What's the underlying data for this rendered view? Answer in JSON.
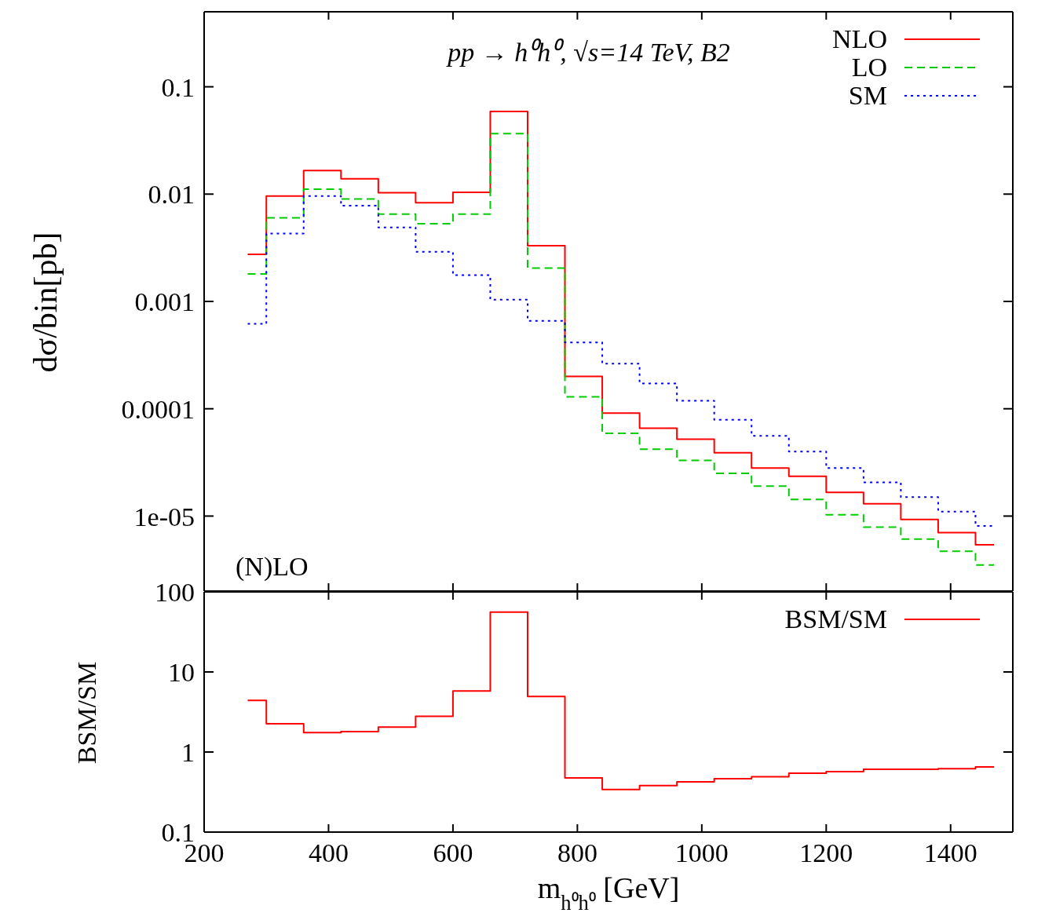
{
  "chart_data": [
    {
      "type": "step",
      "title": "pp → h⁰h⁰, √s=14 TeV, B2",
      "ylabel": "dσ/bin[pb]",
      "annotations": [
        "(N)LO"
      ],
      "x": [
        270,
        330,
        390,
        450,
        510,
        570,
        630,
        690,
        750,
        810,
        870,
        930,
        990,
        1050,
        1110,
        1170,
        1230,
        1290,
        1350,
        1410,
        1470
      ],
      "series": [
        {
          "name": "NLO",
          "color": "#ff0000",
          "line_style": "solid",
          "values": [
            0.00275,
            0.0096,
            0.0166,
            0.0139,
            0.0103,
            0.0083,
            0.0104,
            0.059,
            0.0033,
            0.0002,
            9.1e-05,
            6.6e-05,
            5.2e-05,
            3.9e-05,
            2.8e-05,
            2.35e-05,
            1.66e-05,
            1.3e-05,
            9.3e-06,
            7e-06,
            5.4e-06
          ]
        },
        {
          "name": "LO",
          "color": "#00cc00",
          "line_style": "dashed",
          "values": [
            0.0018,
            0.006,
            0.0111,
            0.009,
            0.0065,
            0.0053,
            0.0065,
            0.0366,
            0.00205,
            0.000129,
            5.9e-05,
            4.2e-05,
            3.3e-05,
            2.5e-05,
            1.9e-05,
            1.43e-05,
            1.03e-05,
            7.9e-06,
            6.1e-06,
            4.7e-06,
            3.5e-06
          ]
        },
        {
          "name": "SM",
          "color": "#0000ff",
          "line_style": "dotted",
          "values": [
            0.00062,
            0.0043,
            0.0096,
            0.0078,
            0.0049,
            0.0029,
            0.00176,
            0.00104,
            0.00066,
            0.000415,
            0.000263,
            0.000172,
            0.000119,
            7.9e-05,
            5.6e-05,
            4e-05,
            2.8e-05,
            2.06e-05,
            1.5e-05,
            1.1e-05,
            8.1e-06
          ]
        }
      ],
      "xlim": [
        200,
        1500
      ],
      "xticks": [
        200,
        400,
        600,
        800,
        1000,
        1200,
        1400
      ],
      "ylim": [
        2e-06,
        0.5
      ],
      "yticks": [
        {
          "value": 0.1,
          "label": "0.1"
        },
        {
          "value": 0.01,
          "label": "0.01"
        },
        {
          "value": 0.001,
          "label": "0.001"
        },
        {
          "value": 0.0001,
          "label": "0.0001"
        },
        {
          "value": 1e-05,
          "label": "1e-05"
        }
      ],
      "log": "y",
      "grid": false,
      "legend": "top right",
      "tick_labels": "y"
    },
    {
      "type": "step",
      "ylabel": "BSM/SM",
      "xlabel": "m$_{h⁰h⁰}$ [GeV]",
      "x": [
        270,
        330,
        390,
        450,
        510,
        570,
        630,
        690,
        750,
        810,
        870,
        930,
        990,
        1050,
        1110,
        1170,
        1230,
        1290,
        1350,
        1410,
        1470
      ],
      "series": [
        {
          "name": "BSM/SM",
          "color": "#ff0000",
          "line_style": "solid",
          "values": [
            4.4,
            2.25,
            1.75,
            1.8,
            2.05,
            2.8,
            5.8,
            56,
            4.95,
            0.475,
            0.34,
            0.38,
            0.425,
            0.465,
            0.49,
            0.545,
            0.57,
            0.61,
            0.61,
            0.62,
            0.65
          ]
        }
      ],
      "xlim": [
        200,
        1500
      ],
      "xticks": [
        200,
        400,
        600,
        800,
        1000,
        1200,
        1400
      ],
      "ylim": [
        0.1,
        100
      ],
      "yticks": [
        0.1,
        1,
        10,
        100
      ],
      "log": "y",
      "grid": false,
      "legend": "top right"
    }
  ]
}
